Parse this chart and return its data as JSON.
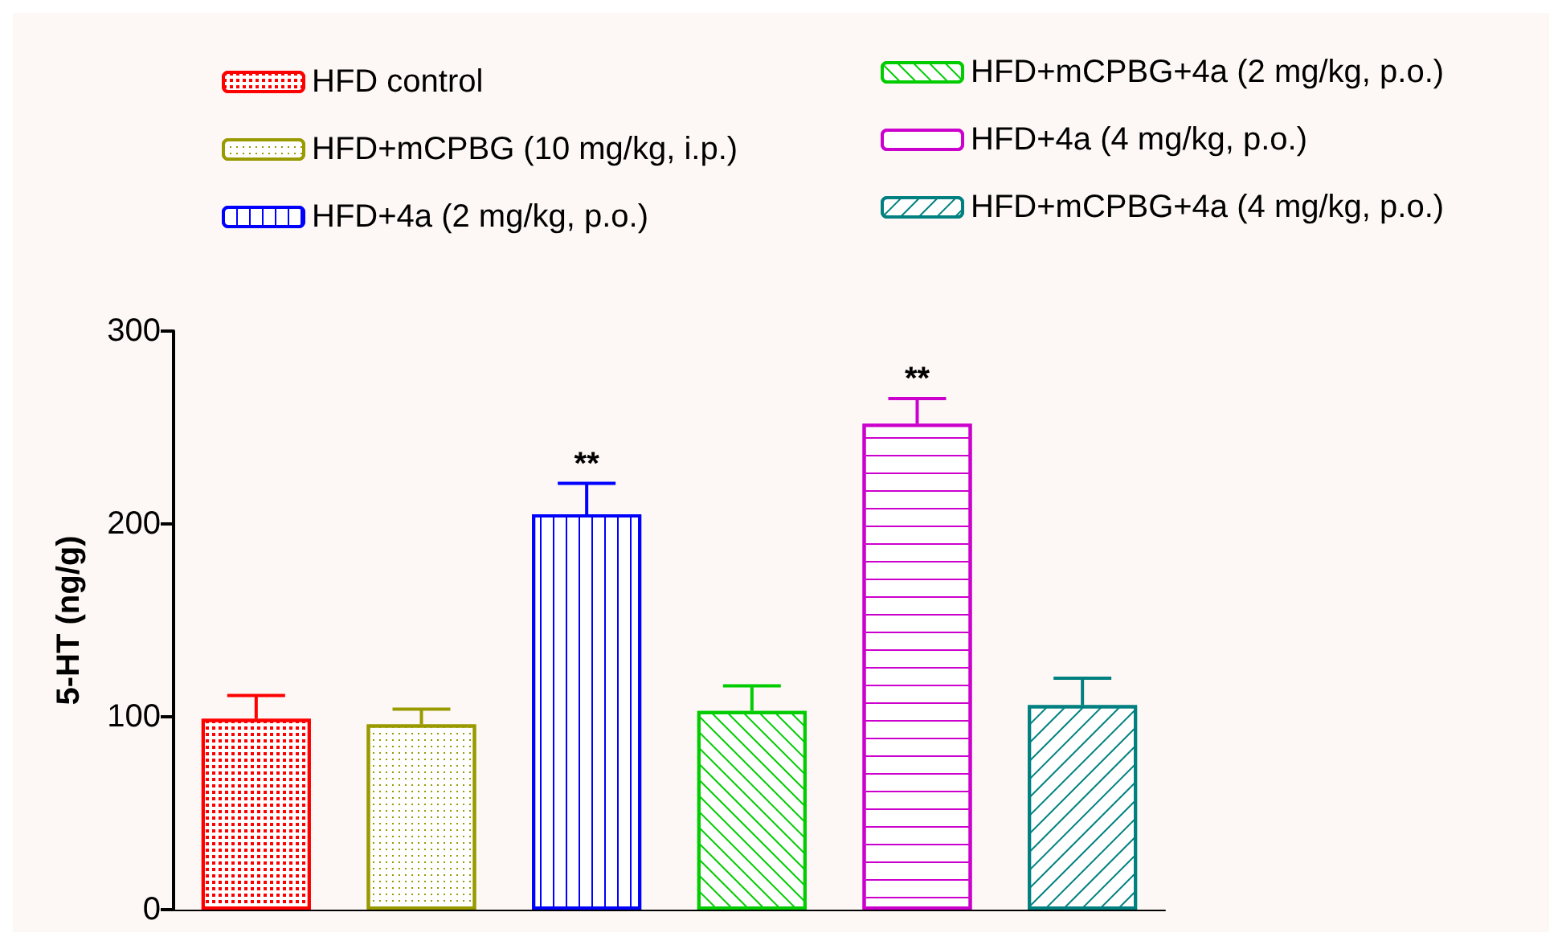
{
  "chart_data": {
    "type": "bar",
    "ylabel": "5-HT (ng/g)",
    "categories": [
      null,
      null,
      null,
      null,
      null,
      null
    ],
    "series": [
      {
        "name": "HFD control",
        "color": "#ff0000",
        "values": [
          99,
          null,
          null,
          null,
          null,
          null
        ],
        "errors": [
          12,
          null,
          null,
          null,
          null,
          null
        ]
      },
      {
        "name": "HFD+mCPBG (10 mg/kg, i.p.)",
        "color": "#999900",
        "values": [
          null,
          96,
          null,
          null,
          null,
          null
        ],
        "errors": [
          null,
          8,
          null,
          null,
          null,
          null
        ]
      },
      {
        "name": "HFD+4a (2 mg/kg, p.o.)",
        "color": "#0000ff",
        "values": [
          null,
          null,
          205,
          null,
          null,
          null
        ],
        "errors": [
          null,
          null,
          16,
          null,
          null,
          null
        ],
        "value_labels": [
          null,
          null,
          "**",
          null,
          null,
          null
        ]
      },
      {
        "name": "HFD+mCPBG+4a (2 mg/kg, p.o.)",
        "color": "#00cc00",
        "values": [
          null,
          null,
          null,
          103,
          null,
          null
        ],
        "errors": [
          null,
          null,
          null,
          13,
          null,
          null
        ]
      },
      {
        "name": "HFD+4a (4 mg/kg, p.o.)",
        "color": "#cc00cc",
        "values": [
          null,
          null,
          null,
          null,
          252,
          null
        ],
        "errors": [
          null,
          null,
          null,
          null,
          13,
          null
        ],
        "value_labels": [
          null,
          null,
          null,
          null,
          "**",
          null
        ]
      },
      {
        "name": "HFD+mCPBG+4a (4 mg/kg, p.o.)",
        "color": "#008080",
        "values": [
          null,
          null,
          null,
          null,
          null,
          106
        ],
        "errors": [
          null,
          null,
          null,
          null,
          null,
          14
        ]
      }
    ],
    "ylim": [
      0,
      300
    ],
    "yticks": [
      0,
      100,
      200,
      300
    ],
    "grid": false,
    "legend": "top",
    "tick_labels": "y"
  }
}
